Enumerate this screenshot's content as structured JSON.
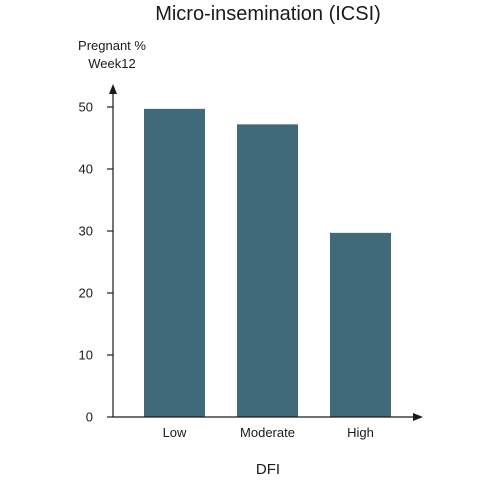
{
  "chart_data": {
    "type": "bar",
    "title": "Micro-insemination (ICSI)",
    "ylabel_lines": [
      "Pregnant %",
      "Week12"
    ],
    "xlabel": "DFI",
    "categories": [
      "Low",
      "Moderate",
      "High"
    ],
    "values": [
      49.7,
      47.2,
      29.7
    ],
    "ylim": [
      0,
      50
    ],
    "yticks": [
      0,
      10,
      20,
      30,
      40,
      50
    ],
    "grid": false,
    "bar_color": "#40697a",
    "axis_color": "#1a1a1a"
  }
}
